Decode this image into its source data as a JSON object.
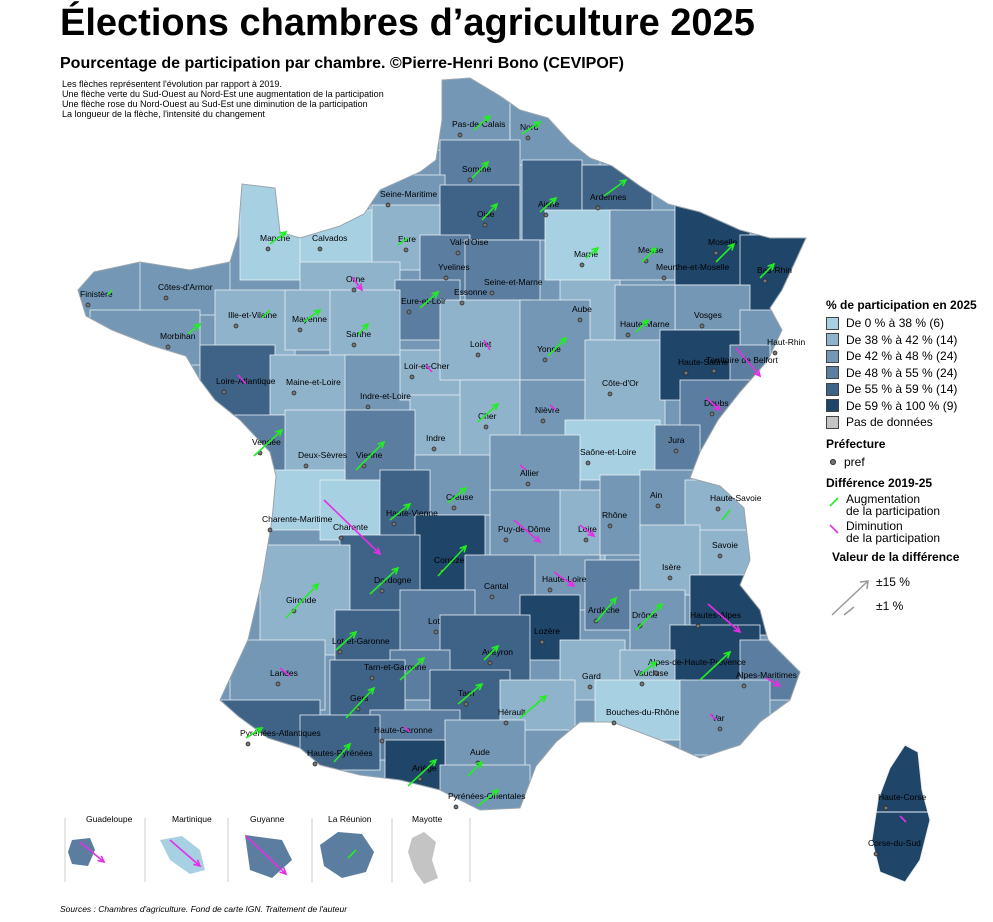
{
  "title": "Élections chambres d’agriculture 2025",
  "subtitle": "Pourcentage de participation par chambre. ©Pierre-Henri Bono (CEVIPOF)",
  "notes": [
    "Les flèches représentent l'évolution par rapport à 2019.",
    "Une flèche verte du Sud-Ouest au Nord-Est une augmentation de la participation",
    "Une flèche rose du Nord-Ouest au Sud-Est une diminution de la participation",
    "La longueur de la flèche, l'intensité du changement"
  ],
  "source": "Sources : Chambres d'agriculture. Fond de carte IGN. Traitement de l'auteur",
  "colors": {
    "c1": "#a8d0e3",
    "c2": "#8fb3cb",
    "c3": "#7397b5",
    "c4": "#5b7ea0",
    "c5": "#3e6386",
    "c6": "#1f4568",
    "nodata": "#c4c4c4",
    "increase": "#22ee22",
    "decrease": "#e62ee6",
    "border": "#e8eef3"
  },
  "legend": {
    "participation_title": "% de participation en 2025",
    "classes": [
      {
        "label": "De 0 % à 38 % (6)",
        "key": "c1"
      },
      {
        "label": "De 38 % à 42 % (14)",
        "key": "c2"
      },
      {
        "label": "De 42 % à 48 % (24)",
        "key": "c3"
      },
      {
        "label": "De 48 % à 55 % (24)",
        "key": "c4"
      },
      {
        "label": "De 55 % à 59 % (14)",
        "key": "c5"
      },
      {
        "label": "De 59 % à 100 % (9)",
        "key": "c6"
      },
      {
        "label": "Pas de données",
        "key": "nodata"
      }
    ],
    "prefecture_title": "Préfecture",
    "prefecture_label": "pref",
    "diff_title": "Différence 2019-25",
    "increase_label": [
      "Augmentation",
      "de la participation"
    ],
    "decrease_label": [
      "Diminution",
      "de la participation"
    ],
    "value_title": "Valeur de la différence",
    "value_big": "±15 %",
    "value_small": "±1 %"
  },
  "departments": [
    {
      "name": "Pas-de-Calais"
    },
    {
      "name": "Nord"
    },
    {
      "name": "Somme"
    },
    {
      "name": "Seine-Maritime"
    },
    {
      "name": "Aisne"
    },
    {
      "name": "Ardennes"
    },
    {
      "name": "Oise"
    },
    {
      "name": "Manche"
    },
    {
      "name": "Calvados"
    },
    {
      "name": "Eure"
    },
    {
      "name": "Val-d'Oise"
    },
    {
      "name": "Marne"
    },
    {
      "name": "Meuse"
    },
    {
      "name": "Moselle"
    },
    {
      "name": "Bas-Rhin"
    },
    {
      "name": "Yvelines"
    },
    {
      "name": "Seine-et-Marne"
    },
    {
      "name": "Essonne"
    },
    {
      "name": "Meurthe-et-Moselle"
    },
    {
      "name": "Finistère"
    },
    {
      "name": "Côtes-d'Armor"
    },
    {
      "name": "Orne"
    },
    {
      "name": "Ille-et-Vilaine"
    },
    {
      "name": "Mayenne"
    },
    {
      "name": "Eure-et-Loir"
    },
    {
      "name": "Aube"
    },
    {
      "name": "Morbihan"
    },
    {
      "name": "Sarthe"
    },
    {
      "name": "Loiret"
    },
    {
      "name": "Haute-Marne"
    },
    {
      "name": "Vosges"
    },
    {
      "name": "Haut-Rhin"
    },
    {
      "name": "Yonne"
    },
    {
      "name": "Loire-Atlantique"
    },
    {
      "name": "Maine-et-Loire"
    },
    {
      "name": "Loir-et-Cher"
    },
    {
      "name": "Haute-Saône"
    },
    {
      "name": "Territoire de Belfort"
    },
    {
      "name": "Indre-et-Loire"
    },
    {
      "name": "Côte-d'Or"
    },
    {
      "name": "Doubs"
    },
    {
      "name": "Vendée"
    },
    {
      "name": "Nièvre"
    },
    {
      "name": "Cher"
    },
    {
      "name": "Deux-Sèvres"
    },
    {
      "name": "Vienne"
    },
    {
      "name": "Indre"
    },
    {
      "name": "Jura"
    },
    {
      "name": "Saône-et-Loire"
    },
    {
      "name": "Allier"
    },
    {
      "name": "Haute-Savoie"
    },
    {
      "name": "Ain"
    },
    {
      "name": "Creuse"
    },
    {
      "name": "Haute-Vienne"
    },
    {
      "name": "Charente-Maritime"
    },
    {
      "name": "Charente"
    },
    {
      "name": "Rhône"
    },
    {
      "name": "Loire"
    },
    {
      "name": "Puy-de-Dôme"
    },
    {
      "name": "Savoie"
    },
    {
      "name": "Corrèze"
    },
    {
      "name": "Isère"
    },
    {
      "name": "Dordogne"
    },
    {
      "name": "Haute-Loire"
    },
    {
      "name": "Cantal"
    },
    {
      "name": "Ardèche"
    },
    {
      "name": "Gironde"
    },
    {
      "name": "Hautes-Alpes"
    },
    {
      "name": "Drôme"
    },
    {
      "name": "Lot"
    },
    {
      "name": "Lozère"
    },
    {
      "name": "Lot-et-Garonne"
    },
    {
      "name": "Aveyron"
    },
    {
      "name": "Tarn-et-Garonne"
    },
    {
      "name": "Alpes-de-Haute-Provence"
    },
    {
      "name": "Landes"
    },
    {
      "name": "Gard"
    },
    {
      "name": "Vaucluse"
    },
    {
      "name": "Alpes-Maritimes"
    },
    {
      "name": "Gers"
    },
    {
      "name": "Tarn"
    },
    {
      "name": "Hérault"
    },
    {
      "name": "Bouches-du-Rhône"
    },
    {
      "name": "Haute-Garonne"
    },
    {
      "name": "Pyrénées-Atlantiques"
    },
    {
      "name": "Var"
    },
    {
      "name": "Aude"
    },
    {
      "name": "Hautes-Pyrénées"
    },
    {
      "name": "Ariège"
    },
    {
      "name": "Pyrénées-Orientales"
    },
    {
      "name": "Haute-Corse"
    },
    {
      "name": "Corse-du-Sud"
    }
  ],
  "overseas": [
    {
      "name": "Guadeloupe"
    },
    {
      "name": "Martinique"
    },
    {
      "name": "Guyanne"
    },
    {
      "name": "La Réunion"
    },
    {
      "name": "Mayotte"
    }
  ]
}
